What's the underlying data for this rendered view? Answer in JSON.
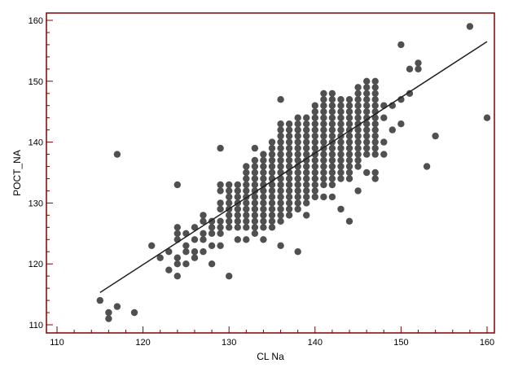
{
  "chart_data": {
    "type": "scatter",
    "title": "",
    "xlabel": "CL Na",
    "ylabel": "POCT_NA",
    "xlim": [
      110,
      160
    ],
    "ylim": [
      110,
      160
    ],
    "x_ticks": [
      110,
      120,
      130,
      140,
      150,
      160
    ],
    "y_ticks": [
      110,
      120,
      130,
      140,
      150,
      160
    ],
    "grid": false,
    "legend": "none",
    "frame_color": "#800000",
    "point_color": "#505050",
    "line_color": "#202020",
    "fit_line": {
      "x": [
        115,
        160
      ],
      "y": [
        115.3,
        156.5
      ]
    },
    "points": [
      [
        115,
        114
      ],
      [
        116,
        112
      ],
      [
        116,
        111
      ],
      [
        117,
        113
      ],
      [
        117,
        138
      ],
      [
        119,
        112
      ],
      [
        121,
        123
      ],
      [
        122,
        121
      ],
      [
        123,
        122
      ],
      [
        123,
        119
      ],
      [
        124,
        126
      ],
      [
        124,
        125
      ],
      [
        124,
        124
      ],
      [
        124,
        121
      ],
      [
        124,
        120
      ],
      [
        124,
        118
      ],
      [
        124,
        133
      ],
      [
        125,
        125
      ],
      [
        125,
        123
      ],
      [
        125,
        122
      ],
      [
        125,
        120
      ],
      [
        126,
        126
      ],
      [
        126,
        124
      ],
      [
        126,
        122
      ],
      [
        126,
        121
      ],
      [
        127,
        128
      ],
      [
        127,
        127
      ],
      [
        127,
        125
      ],
      [
        127,
        124
      ],
      [
        127,
        122
      ],
      [
        128,
        127
      ],
      [
        128,
        126
      ],
      [
        128,
        125
      ],
      [
        128,
        123
      ],
      [
        128,
        120
      ],
      [
        129,
        139
      ],
      [
        129,
        133
      ],
      [
        129,
        132
      ],
      [
        129,
        130
      ],
      [
        129,
        129
      ],
      [
        129,
        127
      ],
      [
        129,
        126
      ],
      [
        129,
        125
      ],
      [
        129,
        123
      ],
      [
        130,
        133
      ],
      [
        130,
        132
      ],
      [
        130,
        131
      ],
      [
        130,
        130
      ],
      [
        130,
        129
      ],
      [
        130,
        128
      ],
      [
        130,
        127
      ],
      [
        130,
        126
      ],
      [
        130,
        118
      ],
      [
        131,
        133
      ],
      [
        131,
        132
      ],
      [
        131,
        131
      ],
      [
        131,
        130
      ],
      [
        131,
        129
      ],
      [
        131,
        128
      ],
      [
        131,
        127
      ],
      [
        131,
        126
      ],
      [
        131,
        124
      ],
      [
        132,
        136
      ],
      [
        132,
        135
      ],
      [
        132,
        134
      ],
      [
        132,
        133
      ],
      [
        132,
        132
      ],
      [
        132,
        131
      ],
      [
        132,
        130
      ],
      [
        132,
        129
      ],
      [
        132,
        128
      ],
      [
        132,
        127
      ],
      [
        132,
        126
      ],
      [
        132,
        124
      ],
      [
        133,
        139
      ],
      [
        133,
        137
      ],
      [
        133,
        136
      ],
      [
        133,
        135
      ],
      [
        133,
        134
      ],
      [
        133,
        133
      ],
      [
        133,
        132
      ],
      [
        133,
        131
      ],
      [
        133,
        130
      ],
      [
        133,
        129
      ],
      [
        133,
        128
      ],
      [
        133,
        127
      ],
      [
        133,
        126
      ],
      [
        133,
        125
      ],
      [
        134,
        138
      ],
      [
        134,
        137
      ],
      [
        134,
        136
      ],
      [
        134,
        135
      ],
      [
        134,
        134
      ],
      [
        134,
        133
      ],
      [
        134,
        132
      ],
      [
        134,
        131
      ],
      [
        134,
        130
      ],
      [
        134,
        129
      ],
      [
        134,
        128
      ],
      [
        134,
        127
      ],
      [
        134,
        126
      ],
      [
        134,
        124
      ],
      [
        135,
        140
      ],
      [
        135,
        139
      ],
      [
        135,
        138
      ],
      [
        135,
        137
      ],
      [
        135,
        136
      ],
      [
        135,
        135
      ],
      [
        135,
        134
      ],
      [
        135,
        133
      ],
      [
        135,
        132
      ],
      [
        135,
        131
      ],
      [
        135,
        130
      ],
      [
        135,
        129
      ],
      [
        135,
        128
      ],
      [
        135,
        127
      ],
      [
        135,
        126
      ],
      [
        136,
        147
      ],
      [
        136,
        143
      ],
      [
        136,
        142
      ],
      [
        136,
        141
      ],
      [
        136,
        140
      ],
      [
        136,
        139
      ],
      [
        136,
        138
      ],
      [
        136,
        137
      ],
      [
        136,
        136
      ],
      [
        136,
        135
      ],
      [
        136,
        134
      ],
      [
        136,
        133
      ],
      [
        136,
        132
      ],
      [
        136,
        131
      ],
      [
        136,
        130
      ],
      [
        136,
        129
      ],
      [
        136,
        128
      ],
      [
        136,
        127
      ],
      [
        136,
        123
      ],
      [
        137,
        143
      ],
      [
        137,
        142
      ],
      [
        137,
        141
      ],
      [
        137,
        140
      ],
      [
        137,
        139
      ],
      [
        137,
        138
      ],
      [
        137,
        137
      ],
      [
        137,
        136
      ],
      [
        137,
        135
      ],
      [
        137,
        134
      ],
      [
        137,
        133
      ],
      [
        137,
        132
      ],
      [
        137,
        131
      ],
      [
        137,
        130
      ],
      [
        137,
        129
      ],
      [
        137,
        128
      ],
      [
        138,
        144
      ],
      [
        138,
        143
      ],
      [
        138,
        142
      ],
      [
        138,
        141
      ],
      [
        138,
        140
      ],
      [
        138,
        139
      ],
      [
        138,
        138
      ],
      [
        138,
        137
      ],
      [
        138,
        136
      ],
      [
        138,
        135
      ],
      [
        138,
        134
      ],
      [
        138,
        133
      ],
      [
        138,
        132
      ],
      [
        138,
        131
      ],
      [
        138,
        130
      ],
      [
        138,
        129
      ],
      [
        138,
        122
      ],
      [
        139,
        144
      ],
      [
        139,
        143
      ],
      [
        139,
        142
      ],
      [
        139,
        141
      ],
      [
        139,
        140
      ],
      [
        139,
        139
      ],
      [
        139,
        138
      ],
      [
        139,
        137
      ],
      [
        139,
        136
      ],
      [
        139,
        135
      ],
      [
        139,
        134
      ],
      [
        139,
        133
      ],
      [
        139,
        132
      ],
      [
        139,
        131
      ],
      [
        139,
        130
      ],
      [
        139,
        128
      ],
      [
        140,
        146
      ],
      [
        140,
        145
      ],
      [
        140,
        144
      ],
      [
        140,
        143
      ],
      [
        140,
        142
      ],
      [
        140,
        141
      ],
      [
        140,
        140
      ],
      [
        140,
        139
      ],
      [
        140,
        138
      ],
      [
        140,
        137
      ],
      [
        140,
        136
      ],
      [
        140,
        135
      ],
      [
        140,
        134
      ],
      [
        140,
        133
      ],
      [
        140,
        132
      ],
      [
        140,
        131
      ],
      [
        141,
        148
      ],
      [
        141,
        147
      ],
      [
        141,
        146
      ],
      [
        141,
        145
      ],
      [
        141,
        144
      ],
      [
        141,
        143
      ],
      [
        141,
        142
      ],
      [
        141,
        141
      ],
      [
        141,
        140
      ],
      [
        141,
        139
      ],
      [
        141,
        138
      ],
      [
        141,
        137
      ],
      [
        141,
        136
      ],
      [
        141,
        135
      ],
      [
        141,
        134
      ],
      [
        141,
        133
      ],
      [
        141,
        131
      ],
      [
        142,
        148
      ],
      [
        142,
        147
      ],
      [
        142,
        146
      ],
      [
        142,
        145
      ],
      [
        142,
        144
      ],
      [
        142,
        143
      ],
      [
        142,
        142
      ],
      [
        142,
        141
      ],
      [
        142,
        140
      ],
      [
        142,
        139
      ],
      [
        142,
        138
      ],
      [
        142,
        137
      ],
      [
        142,
        136
      ],
      [
        142,
        135
      ],
      [
        142,
        134
      ],
      [
        142,
        133
      ],
      [
        142,
        131
      ],
      [
        143,
        147
      ],
      [
        143,
        146
      ],
      [
        143,
        145
      ],
      [
        143,
        144
      ],
      [
        143,
        143
      ],
      [
        143,
        142
      ],
      [
        143,
        141
      ],
      [
        143,
        140
      ],
      [
        143,
        139
      ],
      [
        143,
        138
      ],
      [
        143,
        137
      ],
      [
        143,
        136
      ],
      [
        143,
        135
      ],
      [
        143,
        134
      ],
      [
        143,
        129
      ],
      [
        144,
        147
      ],
      [
        144,
        146
      ],
      [
        144,
        145
      ],
      [
        144,
        144
      ],
      [
        144,
        143
      ],
      [
        144,
        142
      ],
      [
        144,
        141
      ],
      [
        144,
        140
      ],
      [
        144,
        139
      ],
      [
        144,
        138
      ],
      [
        144,
        137
      ],
      [
        144,
        136
      ],
      [
        144,
        135
      ],
      [
        144,
        134
      ],
      [
        144,
        127
      ],
      [
        145,
        149
      ],
      [
        145,
        148
      ],
      [
        145,
        147
      ],
      [
        145,
        146
      ],
      [
        145,
        145
      ],
      [
        145,
        144
      ],
      [
        145,
        143
      ],
      [
        145,
        142
      ],
      [
        145,
        141
      ],
      [
        145,
        140
      ],
      [
        145,
        139
      ],
      [
        145,
        138
      ],
      [
        145,
        137
      ],
      [
        145,
        136
      ],
      [
        145,
        132
      ],
      [
        146,
        150
      ],
      [
        146,
        149
      ],
      [
        146,
        148
      ],
      [
        146,
        147
      ],
      [
        146,
        146
      ],
      [
        146,
        145
      ],
      [
        146,
        144
      ],
      [
        146,
        143
      ],
      [
        146,
        142
      ],
      [
        146,
        141
      ],
      [
        146,
        140
      ],
      [
        146,
        139
      ],
      [
        146,
        138
      ],
      [
        146,
        135
      ],
      [
        147,
        150
      ],
      [
        147,
        149
      ],
      [
        147,
        148
      ],
      [
        147,
        147
      ],
      [
        147,
        146
      ],
      [
        147,
        145
      ],
      [
        147,
        144
      ],
      [
        147,
        143
      ],
      [
        147,
        142
      ],
      [
        147,
        141
      ],
      [
        147,
        140
      ],
      [
        147,
        139
      ],
      [
        147,
        138
      ],
      [
        147,
        135
      ],
      [
        147,
        134
      ],
      [
        148,
        146
      ],
      [
        148,
        144
      ],
      [
        148,
        140
      ],
      [
        148,
        138
      ],
      [
        149,
        146
      ],
      [
        149,
        142
      ],
      [
        150,
        156
      ],
      [
        150,
        147
      ],
      [
        150,
        143
      ],
      [
        151,
        152
      ],
      [
        151,
        148
      ],
      [
        152,
        153
      ],
      [
        152,
        152
      ],
      [
        153,
        136
      ],
      [
        154,
        141
      ],
      [
        158,
        159
      ],
      [
        160,
        144
      ]
    ]
  }
}
